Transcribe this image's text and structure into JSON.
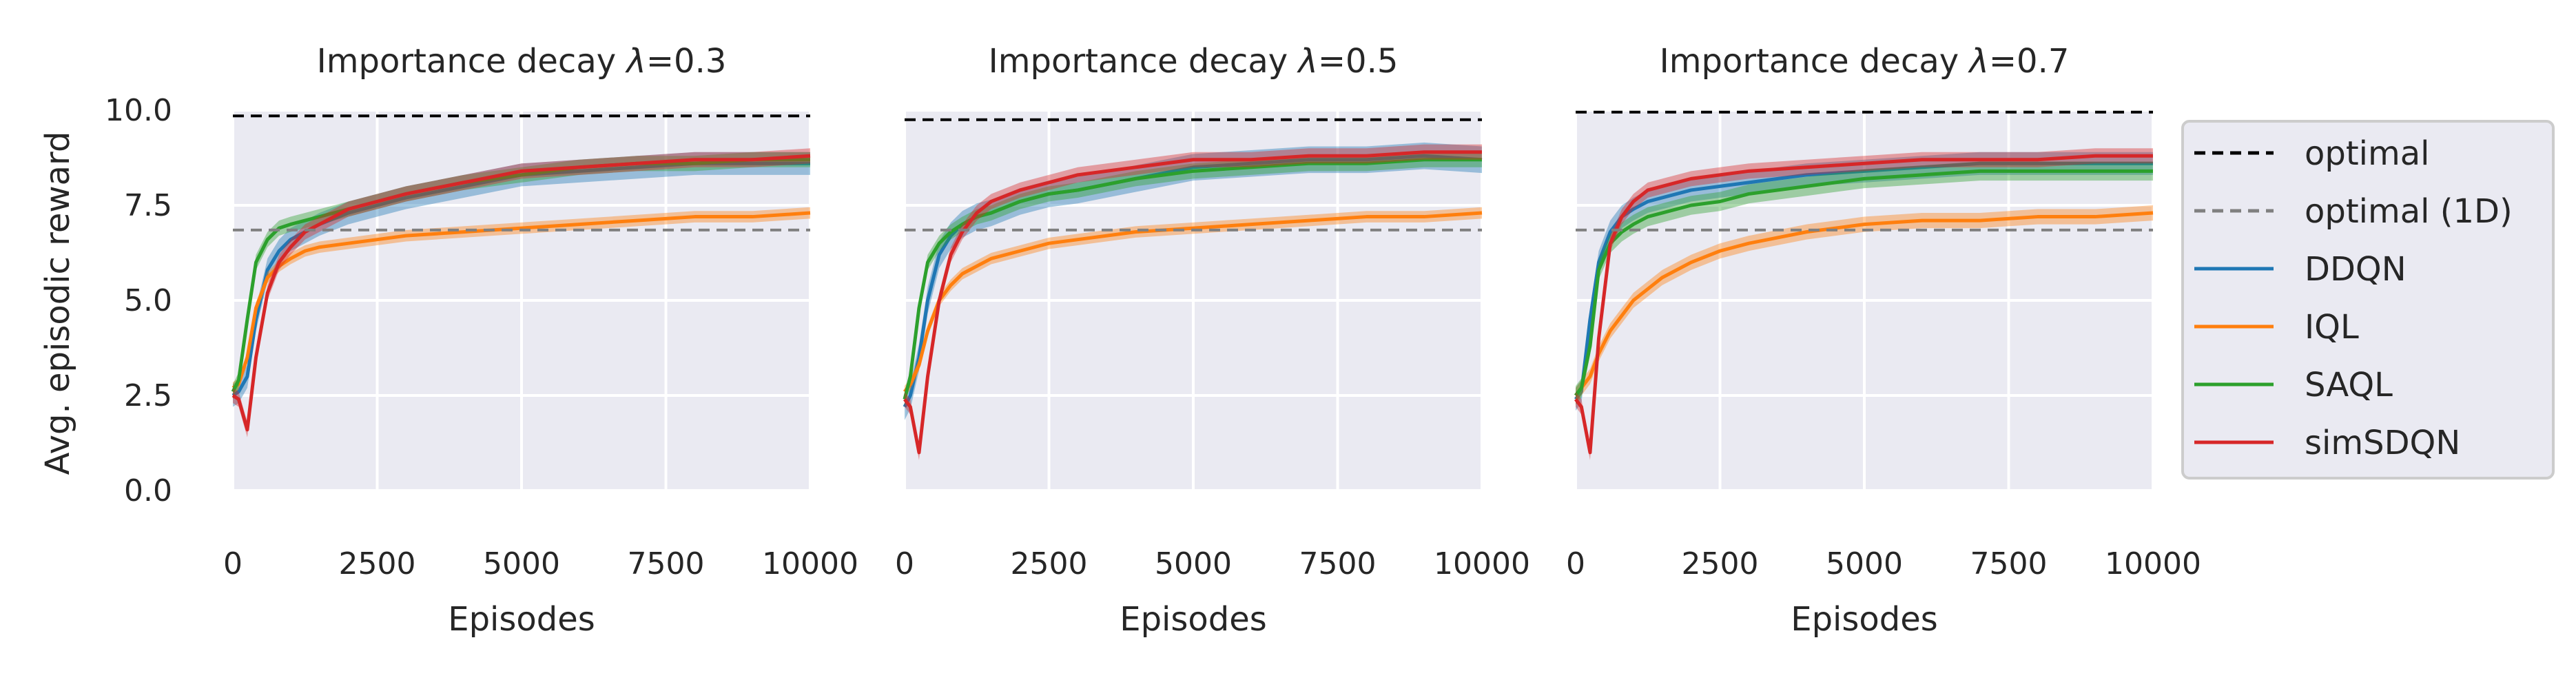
{
  "colors": {
    "optimal": "#000000",
    "optimal_1d": "#808080",
    "DDQN": "#1f77b4",
    "IQL": "#ff7f0e",
    "SAQL": "#2ca02c",
    "simSDQN": "#d62728",
    "panel_bg": "#eaeaf2",
    "grid": "#ffffff"
  },
  "legend": {
    "placement": "right",
    "entries": [
      {
        "key": "optimal",
        "label": "optimal",
        "style": "dashed"
      },
      {
        "key": "optimal_1d",
        "label": "optimal (1D)",
        "style": "dashed"
      },
      {
        "key": "DDQN",
        "label": "DDQN",
        "style": "solid"
      },
      {
        "key": "IQL",
        "label": "IQL",
        "style": "solid"
      },
      {
        "key": "SAQL",
        "label": "SAQL",
        "style": "solid"
      },
      {
        "key": "simSDQN",
        "label": "simSDQN",
        "style": "solid"
      }
    ]
  },
  "chart_data": [
    {
      "type": "line",
      "title_prefix": "Importance decay ",
      "title_symbol": "λ",
      "title_suffix": "=0.3",
      "xlabel": "Episodes",
      "ylabel": "Avg. episodic reward",
      "xlim": [
        0,
        10000
      ],
      "ylim": [
        0,
        10
      ],
      "xticks": [
        "0",
        "2500",
        "5000",
        "7500",
        "10000"
      ],
      "yticks": [
        "0.0",
        "2.5",
        "5.0",
        "7.5",
        "10.0"
      ],
      "grid": true,
      "reference_lines": [
        {
          "key": "optimal",
          "name": "optimal",
          "y": 9.85
        },
        {
          "key": "optimal_1d",
          "name": "optimal (1D)",
          "y": 6.85
        }
      ],
      "x": [
        0,
        100,
        250,
        400,
        600,
        800,
        1000,
        1250,
        1500,
        2000,
        2500,
        3000,
        4000,
        5000,
        6000,
        7000,
        8000,
        9000,
        10000
      ],
      "series": [
        {
          "name": "DDQN",
          "values": [
            2.5,
            2.6,
            3.0,
            4.5,
            5.8,
            6.3,
            6.6,
            6.8,
            7.0,
            7.3,
            7.5,
            7.7,
            8.0,
            8.3,
            8.4,
            8.5,
            8.6,
            8.6,
            8.6
          ],
          "band": 0.3
        },
        {
          "name": "IQL",
          "values": [
            2.7,
            2.8,
            3.5,
            4.8,
            5.6,
            5.9,
            6.1,
            6.3,
            6.4,
            6.5,
            6.6,
            6.7,
            6.8,
            6.9,
            7.0,
            7.1,
            7.2,
            7.2,
            7.3
          ],
          "band": 0.15
        },
        {
          "name": "SAQL",
          "values": [
            2.6,
            2.9,
            4.5,
            6.0,
            6.6,
            6.9,
            7.0,
            7.1,
            7.2,
            7.4,
            7.6,
            7.8,
            8.1,
            8.3,
            8.5,
            8.6,
            8.6,
            8.7,
            8.7
          ],
          "band": 0.2
        },
        {
          "name": "simSDQN",
          "values": [
            2.5,
            2.4,
            1.6,
            3.5,
            5.2,
            6.0,
            6.4,
            6.8,
            7.0,
            7.4,
            7.6,
            7.8,
            8.1,
            8.4,
            8.5,
            8.6,
            8.7,
            8.7,
            8.8
          ],
          "band": 0.2
        }
      ]
    },
    {
      "type": "line",
      "title_prefix": "Importance decay ",
      "title_symbol": "λ",
      "title_suffix": "=0.5",
      "xlabel": "Episodes",
      "ylabel": "",
      "xlim": [
        0,
        10000
      ],
      "ylim": [
        0,
        10
      ],
      "xticks": [
        "0",
        "2500",
        "5000",
        "7500",
        "10000"
      ],
      "yticks": [],
      "grid": true,
      "reference_lines": [
        {
          "key": "optimal",
          "name": "optimal",
          "y": 9.75
        },
        {
          "key": "optimal_1d",
          "name": "optimal (1D)",
          "y": 6.85
        }
      ],
      "x": [
        0,
        100,
        250,
        400,
        600,
        800,
        1000,
        1250,
        1500,
        2000,
        2500,
        3000,
        4000,
        5000,
        6000,
        7000,
        8000,
        9000,
        10000
      ],
      "series": [
        {
          "name": "DDQN",
          "values": [
            2.2,
            2.5,
            3.5,
            5.0,
            6.2,
            6.7,
            7.0,
            7.2,
            7.3,
            7.6,
            7.8,
            7.9,
            8.2,
            8.5,
            8.6,
            8.7,
            8.7,
            8.8,
            8.7
          ],
          "band": 0.35
        },
        {
          "name": "IQL",
          "values": [
            2.6,
            2.8,
            3.3,
            4.2,
            5.0,
            5.4,
            5.7,
            5.9,
            6.1,
            6.3,
            6.5,
            6.6,
            6.8,
            6.9,
            7.0,
            7.1,
            7.2,
            7.2,
            7.3
          ],
          "band": 0.15
        },
        {
          "name": "SAQL",
          "values": [
            2.4,
            3.0,
            4.8,
            6.0,
            6.5,
            6.8,
            7.0,
            7.2,
            7.3,
            7.6,
            7.8,
            7.9,
            8.2,
            8.4,
            8.5,
            8.6,
            8.6,
            8.7,
            8.7
          ],
          "band": 0.2
        },
        {
          "name": "simSDQN",
          "values": [
            2.4,
            2.2,
            1.0,
            3.0,
            5.0,
            6.2,
            6.8,
            7.3,
            7.6,
            7.9,
            8.1,
            8.3,
            8.5,
            8.7,
            8.7,
            8.8,
            8.8,
            8.9,
            8.9
          ],
          "band": 0.2
        }
      ]
    },
    {
      "type": "line",
      "title_prefix": "Importance decay ",
      "title_symbol": "λ",
      "title_suffix": "=0.7",
      "xlabel": "Episodes",
      "ylabel": "",
      "xlim": [
        0,
        10000
      ],
      "ylim": [
        0,
        10
      ],
      "xticks": [
        "0",
        "2500",
        "5000",
        "7500",
        "10000"
      ],
      "yticks": [],
      "grid": true,
      "reference_lines": [
        {
          "key": "optimal",
          "name": "optimal",
          "y": 9.95
        },
        {
          "key": "optimal_1d",
          "name": "optimal (1D)",
          "y": 6.85
        }
      ],
      "x": [
        0,
        100,
        250,
        400,
        600,
        800,
        1000,
        1250,
        1500,
        2000,
        2500,
        3000,
        4000,
        5000,
        6000,
        7000,
        8000,
        9000,
        10000
      ],
      "series": [
        {
          "name": "DDQN",
          "values": [
            2.4,
            2.6,
            4.5,
            6.0,
            6.8,
            7.2,
            7.4,
            7.6,
            7.7,
            7.9,
            8.0,
            8.1,
            8.3,
            8.4,
            8.5,
            8.6,
            8.6,
            8.6,
            8.6
          ],
          "band": 0.3
        },
        {
          "name": "IQL",
          "values": [
            2.5,
            2.7,
            3.0,
            3.6,
            4.2,
            4.6,
            5.0,
            5.3,
            5.6,
            6.0,
            6.3,
            6.5,
            6.8,
            7.0,
            7.1,
            7.1,
            7.2,
            7.2,
            7.3
          ],
          "band": 0.2
        },
        {
          "name": "SAQL",
          "values": [
            2.5,
            2.7,
            3.8,
            5.8,
            6.5,
            6.8,
            7.0,
            7.2,
            7.3,
            7.5,
            7.6,
            7.8,
            8.0,
            8.2,
            8.3,
            8.4,
            8.4,
            8.4,
            8.4
          ],
          "band": 0.25
        },
        {
          "name": "simSDQN",
          "values": [
            2.4,
            2.2,
            1.0,
            4.0,
            6.5,
            7.2,
            7.6,
            7.9,
            8.0,
            8.2,
            8.3,
            8.4,
            8.5,
            8.6,
            8.7,
            8.7,
            8.7,
            8.8,
            8.8
          ],
          "band": 0.2
        }
      ]
    }
  ]
}
